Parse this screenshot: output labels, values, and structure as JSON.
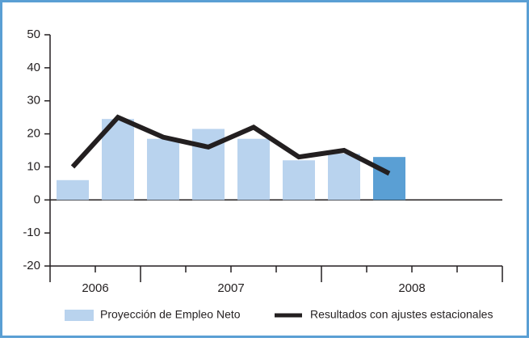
{
  "chart_data": {
    "type": "bar_line",
    "categories": [
      null,
      null,
      null,
      null,
      null,
      null,
      null,
      null,
      null,
      null
    ],
    "groups": [
      {
        "label": "2006",
        "count": 2
      },
      {
        "label": "2007",
        "count": 4
      },
      {
        "label": "2008",
        "count": 4
      }
    ],
    "series": [
      {
        "name": "Proyección de Empleo Neto",
        "type": "bar",
        "color": "#b9d3ee",
        "colors": [
          "#b9d3ee",
          "#b9d3ee",
          "#b9d3ee",
          "#b9d3ee",
          "#b9d3ee",
          "#b9d3ee",
          "#b9d3ee",
          "#5a9fd4",
          null,
          null
        ],
        "values": [
          6,
          24.5,
          18.5,
          21.5,
          18.5,
          12,
          14,
          13,
          null,
          null
        ]
      },
      {
        "name": "Resultados con ajustes estacionales",
        "type": "line",
        "color": "#231f20",
        "values": [
          10,
          25,
          19,
          16,
          22,
          13,
          15,
          8,
          null,
          null
        ]
      }
    ],
    "ylim": [
      -20,
      50
    ],
    "yticks": [
      -20,
      -10,
      0,
      10,
      20,
      30,
      40,
      50
    ]
  }
}
